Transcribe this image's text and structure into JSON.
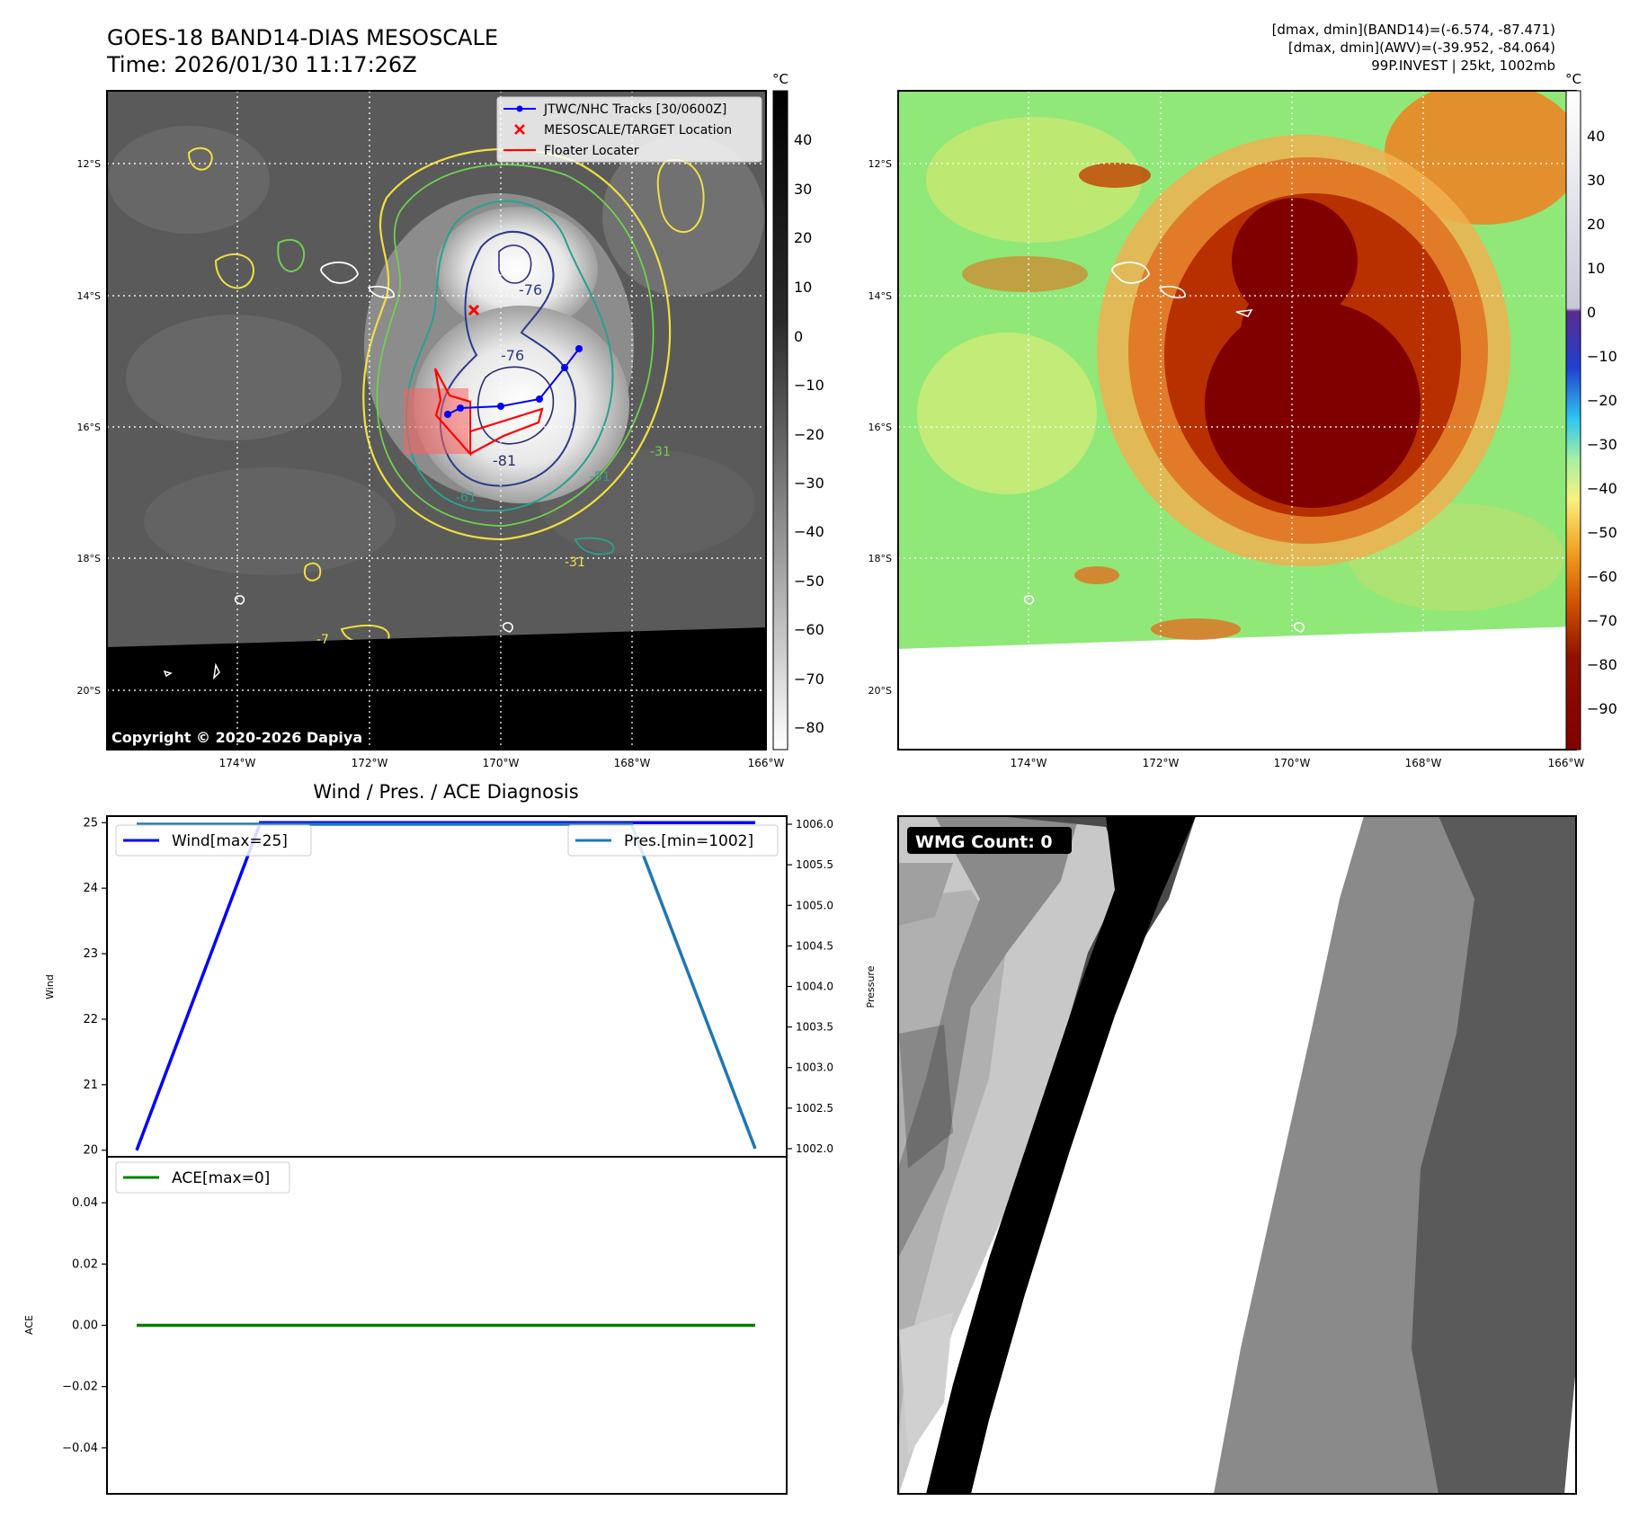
{
  "header": {
    "title_line1": "GOES-18 BAND14-DIAS MESOSCALE",
    "title_line2": "Time: 2026/01/30 11:17:26Z",
    "stats_line1": "[dmax, dmin](BAND14)=(-6.574, -87.471)",
    "stats_line2": "[dmax, dmin](AWV)=(-39.952, -84.064)",
    "stats_line3": "99P.INVEST | 25kt, 1002mb"
  },
  "maps": {
    "lat_labels": [
      "12°S",
      "14°S",
      "16°S",
      "18°S",
      "20°S"
    ],
    "lon_labels": [
      "174°W",
      "172°W",
      "170°W",
      "168°W",
      "166°W"
    ],
    "copyright": "Copyright © 2020-2026 Dapiya",
    "legend": [
      "JTWC/NHC Tracks [30/0600Z]",
      "MESOSCALE/TARGET Location",
      "Floater Locater"
    ],
    "contour_labels": [
      "-76",
      "-76",
      "-81",
      "-61",
      "-51",
      "-31",
      "-31",
      "-7"
    ],
    "colorbar_left": {
      "unit": "°C",
      "ticks": [
        "40",
        "30",
        "20",
        "10",
        "0",
        "−10",
        "−20",
        "−30",
        "−40",
        "−50",
        "−60",
        "−70",
        "−80"
      ]
    },
    "colorbar_right": {
      "unit": "°C",
      "ticks": [
        "40",
        "30",
        "20",
        "10",
        "0",
        "−10",
        "−20",
        "−30",
        "−40",
        "−50",
        "−60",
        "−70",
        "−80",
        "−90"
      ]
    }
  },
  "wmg": {
    "count_label": "WMG Count: 0"
  },
  "chart_data": [
    {
      "type": "line",
      "title": "Wind / Pres. / ACE Diagnosis",
      "ylabel": "Wind",
      "y2label": "Pressure",
      "ylim": [
        19.9,
        25.1
      ],
      "y2lim": [
        1001.9,
        1006.1
      ],
      "yticks": [
        "25",
        "24",
        "23",
        "22",
        "21",
        "20"
      ],
      "y2ticks": [
        "1006.0",
        "1005.5",
        "1005.0",
        "1004.5",
        "1004.0",
        "1003.5",
        "1003.0",
        "1002.5",
        "1002.0"
      ],
      "series": [
        {
          "name": "Wind[max=25]",
          "axis": "left",
          "color": "#0000ff",
          "x": [
            0,
            1,
            2,
            3,
            4,
            5
          ],
          "values": [
            20,
            25,
            25,
            25,
            25,
            25
          ]
        },
        {
          "name": "Pres.[min=1002]",
          "axis": "right",
          "color": "#1f77b4",
          "x": [
            0,
            1,
            2,
            3,
            4,
            5
          ],
          "values": [
            1006,
            1006,
            1006,
            1006,
            1006,
            1002
          ]
        }
      ]
    },
    {
      "type": "line",
      "ylabel": "ACE",
      "ylim": [
        -0.055,
        0.055
      ],
      "yticks": [
        "0.04",
        "0.02",
        "0.00",
        "−0.02",
        "−0.04"
      ],
      "series": [
        {
          "name": "ACE[max=0]",
          "color": "#008000",
          "x": [
            0,
            1,
            2,
            3,
            4,
            5
          ],
          "values": [
            0,
            0,
            0,
            0,
            0,
            0
          ]
        }
      ]
    }
  ],
  "colors": {
    "track": "#0000ff",
    "target": "#ff0000",
    "floater": "#ff0000",
    "wind": "#0000ff",
    "pressure": "#1f77b4",
    "ace": "#008000"
  }
}
